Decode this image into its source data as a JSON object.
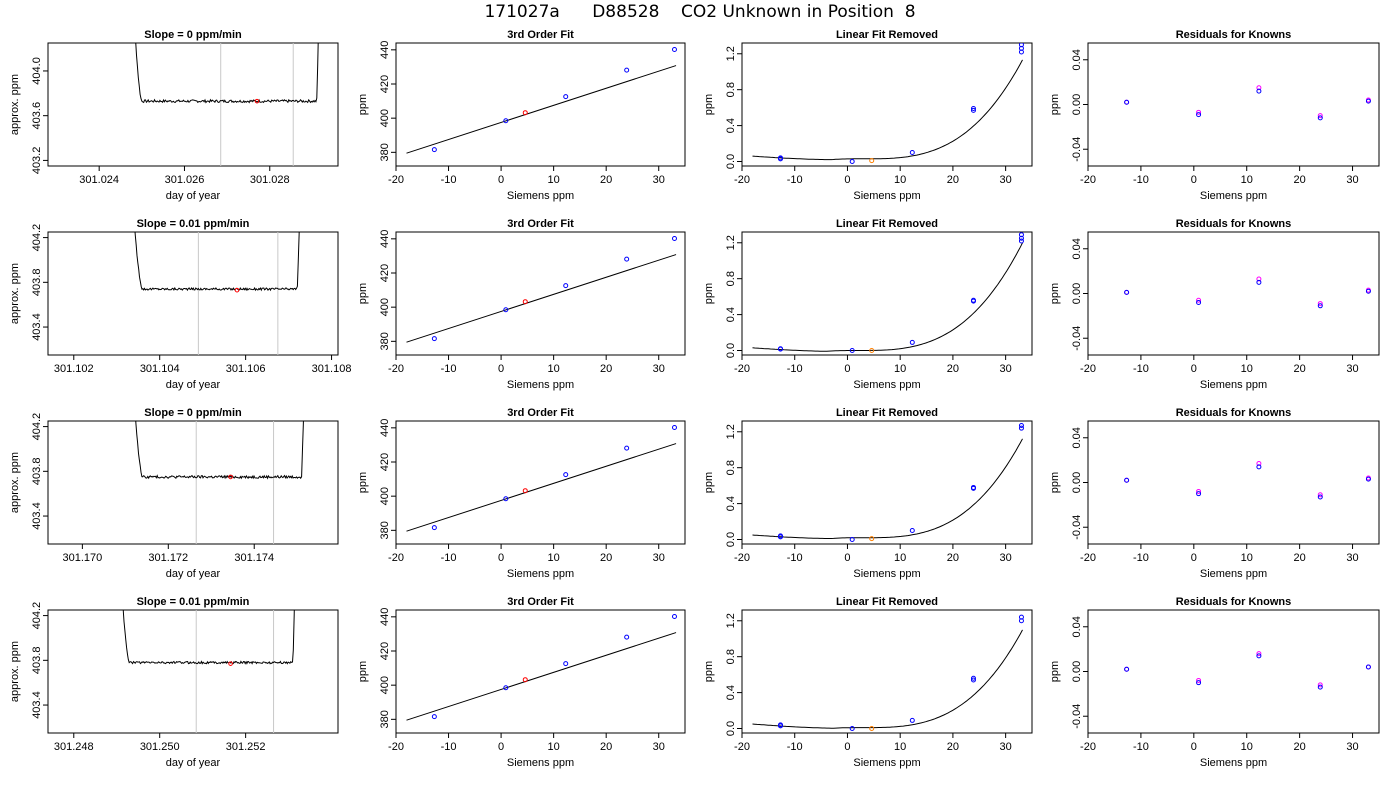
{
  "page": {
    "title": "171027a      D88528    CO2 Unknown in Position  8"
  },
  "colors": {
    "trace": "#000000",
    "axis": "#000000",
    "window_line": "#c8c8c8",
    "known_point": "#0000ff",
    "unknown_point": "#ff0000",
    "unknown_point_linear": "#ff8000",
    "residual_a": "#ff00ff",
    "residual_b": "#0000ff"
  },
  "chart_data": [
    {
      "type": "line",
      "panel": "trace",
      "row": 0,
      "title": "Slope =  0  ppm/min",
      "xlabel": "day of year",
      "ylabel": "approx. ppm",
      "xlim": [
        301.0228,
        301.0296
      ],
      "ylim": [
        403.15,
        404.25
      ],
      "xticks": [
        301.024,
        301.026,
        301.028
      ],
      "xtick_labels": [
        "301.024",
        "301.026",
        "301.028"
      ],
      "yticks": [
        403.2,
        403.6,
        404.0
      ],
      "ytick_labels": [
        "403.2",
        "403.6",
        "404.0"
      ],
      "curve": {
        "start": 301.025,
        "end": 301.0291,
        "x0": 301.0246,
        "x1": 301.02925,
        "base": 403.73,
        "noise": 0.012
      },
      "window": [
        301.02685,
        301.02855
      ],
      "mean_point": {
        "x": 301.0277,
        "y": 403.73
      }
    },
    {
      "type": "line",
      "panel": "cubic",
      "row": 0,
      "title": "3rd Order Fit",
      "xlabel": "Siemens ppm",
      "ylabel": "ppm",
      "xlim": [
        -20,
        35
      ],
      "ylim": [
        372,
        444
      ],
      "xticks": [
        -20,
        -10,
        0,
        10,
        20,
        30
      ],
      "xtick_labels": [
        "-20",
        "-10",
        "0",
        "10",
        "20",
        "30"
      ],
      "yticks": [
        380,
        400,
        420,
        440
      ],
      "ytick_labels": [
        "380",
        "400",
        "420",
        "440"
      ],
      "line_x": [
        -18,
        33.3
      ],
      "slope": 1.0,
      "intercept": 397.5,
      "knowns": [
        [
          -12.7,
          381.6
        ],
        [
          0.9,
          398.5
        ],
        [
          12.3,
          412.6
        ],
        [
          23.9,
          428.1
        ],
        [
          33.0,
          440.2
        ]
      ],
      "unknown": [
        4.6,
        403.2
      ]
    },
    {
      "type": "line",
      "panel": "linear_removed",
      "row": 0,
      "title": "Linear Fit Removed",
      "xlabel": "Siemens ppm",
      "ylabel": "ppm",
      "xlim": [
        -20,
        35
      ],
      "ylim": [
        -0.05,
        1.32
      ],
      "xticks": [
        -20,
        -10,
        0,
        10,
        20,
        30
      ],
      "xtick_labels": [
        "-20",
        "-10",
        "0",
        "10",
        "20",
        "30"
      ],
      "yticks": [
        0.0,
        0.4,
        0.8,
        1.2
      ],
      "ytick_labels": [
        "0.0",
        "0.4",
        "0.8",
        "1.2"
      ],
      "curve": {
        "x_start": -18,
        "x_end": 33.2,
        "k": 4e-05,
        "ref": 3.0,
        "y_ref": 0.03,
        "y_start": 0.06
      },
      "knowns": [
        [
          -12.7,
          0.04
        ],
        [
          -12.7,
          0.03
        ],
        [
          0.9,
          0.0
        ],
        [
          12.3,
          0.1
        ],
        [
          23.9,
          0.57
        ],
        [
          23.9,
          0.59
        ],
        [
          33.0,
          1.22
        ],
        [
          33.0,
          1.26
        ],
        [
          33.0,
          1.3
        ]
      ],
      "unknown": [
        4.6,
        0.01
      ]
    },
    {
      "type": "scatter",
      "panel": "residuals",
      "row": 0,
      "title": "Residuals for Knowns",
      "xlabel": "Siemens ppm",
      "ylabel": "ppm",
      "xlim": [
        -20,
        35
      ],
      "ylim": [
        -0.055,
        0.055
      ],
      "xticks": [
        -20,
        -10,
        0,
        10,
        20,
        30
      ],
      "xtick_labels": [
        "-20",
        "-10",
        "0",
        "10",
        "20",
        "30"
      ],
      "yticks": [
        -0.04,
        0.0,
        0.04
      ],
      "ytick_labels": [
        "-0.04",
        "0.00",
        "0.04"
      ],
      "points": [
        [
          -12.7,
          0.002,
          0.002
        ],
        [
          0.9,
          -0.007,
          -0.009
        ],
        [
          12.3,
          0.015,
          0.012
        ],
        [
          23.9,
          -0.01,
          -0.012
        ],
        [
          33.0,
          0.004,
          0.003
        ]
      ]
    },
    {
      "type": "line",
      "panel": "trace",
      "row": 1,
      "title": "Slope =  0.01  ppm/min",
      "xlabel": "day of year",
      "ylabel": "approx. ppm",
      "xlim": [
        301.1014,
        301.10815
      ],
      "ylim": [
        403.15,
        404.25
      ],
      "xticks": [
        301.102,
        301.104,
        301.106,
        301.108
      ],
      "xtick_labels": [
        "301.102",
        "301.104",
        "301.106",
        "301.108"
      ],
      "yticks": [
        403.4,
        403.8,
        404.2
      ],
      "ytick_labels": [
        "403.4",
        "403.8",
        "404.2"
      ],
      "curve": {
        "start": 301.1036,
        "end": 301.1072,
        "x0": 301.1031,
        "x1": 301.1074,
        "base": 403.74,
        "noise": 0.01
      },
      "window": [
        301.1049,
        301.10675
      ],
      "mean_point": {
        "x": 301.1058,
        "y": 403.73
      }
    },
    {
      "type": "line",
      "panel": "cubic",
      "row": 1,
      "title": "3rd Order Fit",
      "xlabel": "Siemens ppm",
      "ylabel": "ppm",
      "xlim": [
        -20,
        35
      ],
      "ylim": [
        372,
        444
      ],
      "xticks": [
        -20,
        -10,
        0,
        10,
        20,
        30
      ],
      "xtick_labels": [
        "-20",
        "-10",
        "0",
        "10",
        "20",
        "30"
      ],
      "yticks": [
        380,
        400,
        420,
        440
      ],
      "ytick_labels": [
        "380",
        "400",
        "420",
        "440"
      ],
      "line_x": [
        -18,
        33.3
      ],
      "slope": 1.0,
      "intercept": 397.5,
      "knowns": [
        [
          -12.7,
          381.6
        ],
        [
          0.9,
          398.5
        ],
        [
          12.3,
          412.6
        ],
        [
          23.9,
          428.1
        ],
        [
          33.0,
          440.2
        ]
      ],
      "unknown": [
        4.6,
        403.2
      ]
    },
    {
      "type": "line",
      "panel": "linear_removed",
      "row": 1,
      "title": "Linear Fit Removed",
      "xlabel": "Siemens ppm",
      "ylabel": "ppm",
      "xlim": [
        -20,
        35
      ],
      "ylim": [
        -0.05,
        1.32
      ],
      "xticks": [
        -20,
        -10,
        0,
        10,
        20,
        30
      ],
      "xtick_labels": [
        "-20",
        "-10",
        "0",
        "10",
        "20",
        "30"
      ],
      "yticks": [
        0.0,
        0.4,
        0.8,
        1.2
      ],
      "ytick_labels": [
        "0.0",
        "0.4",
        "0.8",
        "1.2"
      ],
      "curve": {
        "x_start": -18,
        "x_end": 33.2,
        "k": 3.95e-05,
        "ref": 2.0,
        "y_ref": 0.0,
        "y_start": 0.03
      },
      "knowns": [
        [
          -12.7,
          0.02
        ],
        [
          -12.7,
          0.015
        ],
        [
          0.9,
          0.0
        ],
        [
          12.3,
          0.09
        ],
        [
          23.9,
          0.55
        ],
        [
          23.9,
          0.56
        ],
        [
          33.0,
          1.22
        ],
        [
          33.0,
          1.25
        ],
        [
          33.0,
          1.29
        ]
      ],
      "unknown": [
        4.6,
        0.0
      ]
    },
    {
      "type": "scatter",
      "panel": "residuals",
      "row": 1,
      "title": "Residuals for Knowns",
      "xlabel": "Siemens ppm",
      "ylabel": "ppm",
      "xlim": [
        -20,
        35
      ],
      "ylim": [
        -0.055,
        0.055
      ],
      "xticks": [
        -20,
        -10,
        0,
        10,
        20,
        30
      ],
      "xtick_labels": [
        "-20",
        "-10",
        "0",
        "10",
        "20",
        "30"
      ],
      "yticks": [
        -0.04,
        0.0,
        0.04
      ],
      "ytick_labels": [
        "-0.04",
        "0.00",
        "0.04"
      ],
      "points": [
        [
          -12.7,
          0.001,
          0.001
        ],
        [
          0.9,
          -0.006,
          -0.008
        ],
        [
          12.3,
          0.013,
          0.01
        ],
        [
          23.9,
          -0.009,
          -0.011
        ],
        [
          33.0,
          0.003,
          0.002
        ]
      ]
    },
    {
      "type": "line",
      "panel": "trace",
      "row": 2,
      "title": "Slope =  0  ppm/min",
      "xlabel": "day of year",
      "ylabel": "approx. ppm",
      "xlim": [
        301.1692,
        301.17595
      ],
      "ylim": [
        403.15,
        404.25
      ],
      "xticks": [
        301.17,
        301.172,
        301.174
      ],
      "xtick_labels": [
        "301.170",
        "301.172",
        "301.174"
      ],
      "yticks": [
        403.4,
        403.8,
        404.2
      ],
      "ytick_labels": [
        "403.4",
        "403.8",
        "404.2"
      ],
      "curve": {
        "start": 301.1714,
        "end": 301.1751,
        "x0": 301.17095,
        "x1": 301.1753,
        "base": 403.75,
        "noise": 0.012
      },
      "window": [
        301.17265,
        301.17445
      ],
      "mean_point": {
        "x": 301.17345,
        "y": 403.75
      }
    },
    {
      "type": "line",
      "panel": "cubic",
      "row": 2,
      "title": "3rd Order Fit",
      "xlabel": "Siemens ppm",
      "ylabel": "ppm",
      "xlim": [
        -20,
        35
      ],
      "ylim": [
        372,
        444
      ],
      "xticks": [
        -20,
        -10,
        0,
        10,
        20,
        30
      ],
      "xtick_labels": [
        "-20",
        "-10",
        "0",
        "10",
        "20",
        "30"
      ],
      "yticks": [
        380,
        400,
        420,
        440
      ],
      "ytick_labels": [
        "380",
        "400",
        "420",
        "440"
      ],
      "line_x": [
        -18,
        33.3
      ],
      "slope": 1.0,
      "intercept": 397.5,
      "knowns": [
        [
          -12.7,
          381.6
        ],
        [
          0.9,
          398.5
        ],
        [
          12.3,
          412.6
        ],
        [
          23.9,
          428.1
        ],
        [
          33.0,
          440.2
        ]
      ],
      "unknown": [
        4.6,
        403.2
      ]
    },
    {
      "type": "line",
      "panel": "linear_removed",
      "row": 2,
      "title": "Linear Fit Removed",
      "xlabel": "Siemens ppm",
      "ylabel": "ppm",
      "xlim": [
        -20,
        35
      ],
      "ylim": [
        -0.05,
        1.32
      ],
      "xticks": [
        -20,
        -10,
        0,
        10,
        20,
        30
      ],
      "xtick_labels": [
        "-20",
        "-10",
        "0",
        "10",
        "20",
        "30"
      ],
      "yticks": [
        0.0,
        0.4,
        0.8,
        1.2
      ],
      "ytick_labels": [
        "0.0",
        "0.4",
        "0.8",
        "1.2"
      ],
      "curve": {
        "x_start": -18,
        "x_end": 33.2,
        "k": 4e-05,
        "ref": 3.0,
        "y_ref": 0.02,
        "y_start": 0.05
      },
      "knowns": [
        [
          -12.7,
          0.04
        ],
        [
          -12.7,
          0.03
        ],
        [
          0.9,
          0.0
        ],
        [
          12.3,
          0.1
        ],
        [
          23.9,
          0.57
        ],
        [
          23.9,
          0.58
        ],
        [
          33.0,
          1.24
        ],
        [
          33.0,
          1.27
        ]
      ],
      "unknown": [
        4.6,
        0.01
      ]
    },
    {
      "type": "scatter",
      "panel": "residuals",
      "row": 2,
      "title": "Residuals for Knowns",
      "xlabel": "Siemens ppm",
      "ylabel": "ppm",
      "xlim": [
        -20,
        35
      ],
      "ylim": [
        -0.055,
        0.055
      ],
      "xticks": [
        -20,
        -10,
        0,
        10,
        20,
        30
      ],
      "xtick_labels": [
        "-20",
        "-10",
        "0",
        "10",
        "20",
        "30"
      ],
      "yticks": [
        -0.04,
        0.0,
        0.04
      ],
      "ytick_labels": [
        "-0.04",
        "0.00",
        "0.04"
      ],
      "points": [
        [
          -12.7,
          0.002,
          0.002
        ],
        [
          0.9,
          -0.008,
          -0.01
        ],
        [
          12.3,
          0.017,
          0.014
        ],
        [
          23.9,
          -0.011,
          -0.013
        ],
        [
          33.0,
          0.004,
          0.003
        ]
      ]
    },
    {
      "type": "line",
      "panel": "trace",
      "row": 3,
      "title": "Slope =  0.01  ppm/min",
      "xlabel": "day of year",
      "ylabel": "approx. ppm",
      "xlim": [
        301.2474,
        301.25415
      ],
      "ylim": [
        403.15,
        404.25
      ],
      "xticks": [
        301.248,
        301.25,
        301.252
      ],
      "xtick_labels": [
        "301.248",
        "301.250",
        "301.252"
      ],
      "yticks": [
        403.4,
        403.8,
        404.2
      ],
      "ytick_labels": [
        "403.4",
        "403.8",
        "404.2"
      ],
      "curve": {
        "start": 301.2493,
        "end": 301.2531,
        "x0": 301.24885,
        "x1": 301.25325,
        "base": 403.78,
        "noise": 0.01
      },
      "window": [
        301.25085,
        301.25265
      ],
      "mean_point": {
        "x": 301.25165,
        "y": 403.77
      }
    },
    {
      "type": "line",
      "panel": "cubic",
      "row": 3,
      "title": "3rd Order Fit",
      "xlabel": "Siemens ppm",
      "ylabel": "ppm",
      "xlim": [
        -20,
        35
      ],
      "ylim": [
        372,
        444
      ],
      "xticks": [
        -20,
        -10,
        0,
        10,
        20,
        30
      ],
      "xtick_labels": [
        "-20",
        "-10",
        "0",
        "10",
        "20",
        "30"
      ],
      "yticks": [
        380,
        400,
        420,
        440
      ],
      "ytick_labels": [
        "380",
        "400",
        "420",
        "440"
      ],
      "line_x": [
        -18,
        33.3
      ],
      "slope": 1.0,
      "intercept": 397.5,
      "knowns": [
        [
          -12.7,
          381.6
        ],
        [
          0.9,
          398.5
        ],
        [
          12.3,
          412.6
        ],
        [
          23.9,
          428.1
        ],
        [
          33.0,
          440.2
        ]
      ],
      "unknown": [
        4.6,
        403.2
      ]
    },
    {
      "type": "line",
      "panel": "linear_removed",
      "row": 3,
      "title": "Linear Fit Removed",
      "xlabel": "Siemens ppm",
      "ylabel": "ppm",
      "xlim": [
        -20,
        35
      ],
      "ylim": [
        -0.05,
        1.32
      ],
      "xticks": [
        -20,
        -10,
        0,
        10,
        20,
        30
      ],
      "xtick_labels": [
        "-20",
        "-10",
        "0",
        "10",
        "20",
        "30"
      ],
      "yticks": [
        0.0,
        0.4,
        0.8,
        1.2
      ],
      "ytick_labels": [
        "0.0",
        "0.4",
        "0.8",
        "1.2"
      ],
      "curve": {
        "x_start": -18,
        "x_end": 33.2,
        "k": 3.95e-05,
        "ref": 3.0,
        "y_ref": 0.01,
        "y_start": 0.05
      },
      "knowns": [
        [
          -12.7,
          0.04
        ],
        [
          -12.7,
          0.03
        ],
        [
          0.9,
          0.0
        ],
        [
          12.3,
          0.09
        ],
        [
          23.9,
          0.54
        ],
        [
          23.9,
          0.56
        ],
        [
          33.0,
          1.2
        ],
        [
          33.0,
          1.24
        ]
      ],
      "unknown": [
        4.6,
        0.0
      ]
    },
    {
      "type": "scatter",
      "panel": "residuals",
      "row": 3,
      "title": "Residuals for Knowns",
      "xlabel": "Siemens ppm",
      "ylabel": "ppm",
      "xlim": [
        -20,
        35
      ],
      "ylim": [
        -0.055,
        0.055
      ],
      "xticks": [
        -20,
        -10,
        0,
        10,
        20,
        30
      ],
      "xtick_labels": [
        "-20",
        "-10",
        "0",
        "10",
        "20",
        "30"
      ],
      "yticks": [
        -0.04,
        0.0,
        0.04
      ],
      "ytick_labels": [
        "-0.04",
        "0.00",
        "0.04"
      ],
      "points": [
        [
          -12.7,
          0.002,
          0.002
        ],
        [
          0.9,
          -0.008,
          -0.01
        ],
        [
          12.3,
          0.016,
          0.014
        ],
        [
          23.9,
          -0.012,
          -0.014
        ],
        [
          33.0,
          0.004,
          0.004
        ]
      ]
    }
  ]
}
